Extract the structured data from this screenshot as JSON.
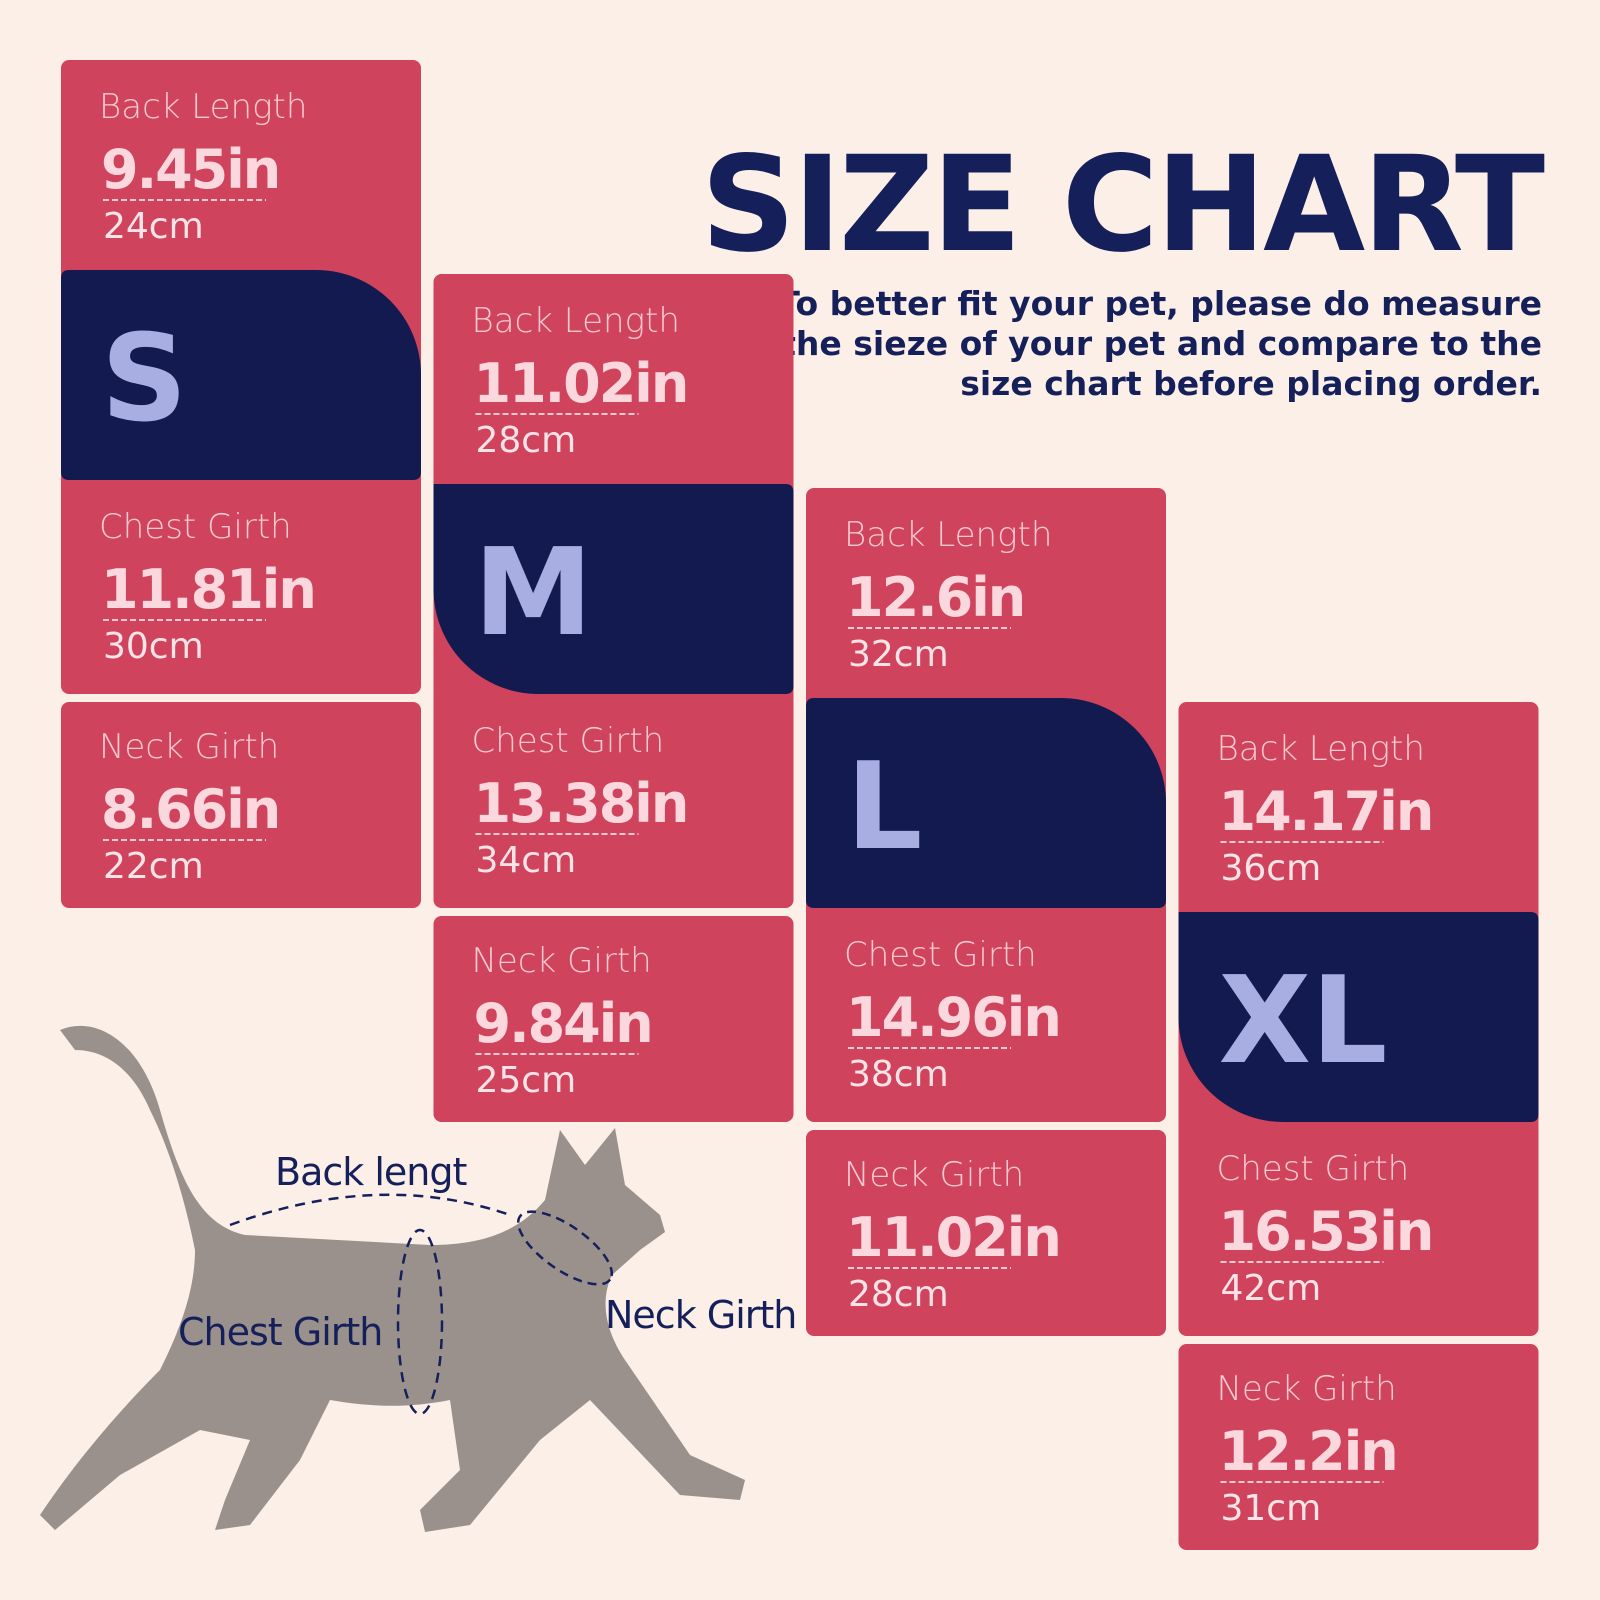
{
  "header": {
    "title": "SIZE CHART",
    "subtitle": [
      "To better fit your pet, please do measure",
      "the sieze of your pet and compare to the",
      "size chart before placing order."
    ]
  },
  "sizes": [
    {
      "size": "S",
      "back": {
        "label": "Back Length",
        "inch": "9.45in",
        "cm": "24cm"
      },
      "chest": {
        "label": "Chest Girth",
        "inch": "11.81in",
        "cm": "30cm"
      },
      "neck": {
        "label": "Neck Girth",
        "inch": "8.66in",
        "cm": "22cm"
      }
    },
    {
      "size": "M",
      "back": {
        "label": "Back Length",
        "inch": "11.02in",
        "cm": "28cm"
      },
      "chest": {
        "label": "Chest Girth",
        "inch": "13.38in",
        "cm": "34cm"
      },
      "neck": {
        "label": "Neck Girth",
        "inch": "9.84in",
        "cm": "25cm"
      }
    },
    {
      "size": "L",
      "back": {
        "label": "Back Length",
        "inch": "12.6in",
        "cm": "32cm"
      },
      "chest": {
        "label": "Chest Girth",
        "inch": "14.96in",
        "cm": "38cm"
      },
      "neck": {
        "label": "Neck Girth",
        "inch": "11.02in",
        "cm": "28cm"
      }
    },
    {
      "size": "XL",
      "back": {
        "label": "Back Length",
        "inch": "14.17in",
        "cm": "36cm"
      },
      "chest": {
        "label": "Chest Girth",
        "inch": "16.53in",
        "cm": "42cm"
      },
      "neck": {
        "label": "Neck Girth",
        "inch": "12.2in",
        "cm": "31cm"
      }
    }
  ],
  "diagram": {
    "back_label": "Back lengt",
    "chest_label": "Chest Girth",
    "neck_label": "Neck Girth"
  }
}
